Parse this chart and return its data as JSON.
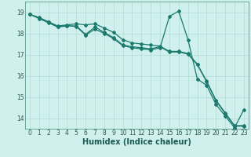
{
  "xlabel": "Humidex (Indice chaleur)",
  "bg_color": "#cff0ec",
  "grid_color": "#b0ddd8",
  "line_color": "#1a7a6e",
  "xlim": [
    -0.5,
    23.5
  ],
  "ylim": [
    13.5,
    19.5
  ],
  "yticks": [
    14,
    15,
    16,
    17,
    18,
    19
  ],
  "xticks": [
    0,
    1,
    2,
    3,
    4,
    5,
    6,
    7,
    8,
    9,
    10,
    11,
    12,
    13,
    14,
    15,
    16,
    17,
    18,
    19,
    20,
    21,
    22,
    23
  ],
  "line1_x": [
    0,
    1,
    2,
    3,
    4,
    5,
    6,
    7,
    8,
    9,
    10,
    11,
    12,
    13,
    14,
    15,
    16,
    17,
    18,
    19,
    20,
    21,
    22,
    23
  ],
  "line1_y": [
    18.9,
    18.75,
    18.55,
    18.35,
    18.4,
    18.45,
    18.4,
    18.45,
    18.25,
    18.05,
    17.7,
    17.55,
    17.5,
    17.45,
    17.4,
    17.15,
    17.15,
    17.05,
    16.55,
    15.75,
    14.85,
    14.25,
    13.65,
    13.65
  ],
  "line2_x": [
    0,
    1,
    2,
    3,
    4,
    5,
    6,
    7,
    8,
    9,
    10,
    11,
    12,
    13,
    14,
    15,
    16,
    17,
    18,
    19,
    20,
    21,
    22,
    23
  ],
  "line2_y": [
    18.9,
    18.72,
    18.52,
    18.32,
    18.37,
    18.32,
    17.92,
    18.2,
    18.0,
    17.75,
    17.42,
    17.32,
    17.27,
    17.22,
    17.32,
    18.8,
    19.05,
    17.7,
    15.85,
    15.55,
    14.65,
    14.1,
    13.55,
    14.4
  ],
  "line3_x": [
    0,
    1,
    2,
    3,
    4,
    5,
    6,
    7,
    8,
    9,
    10,
    11,
    12,
    13,
    14,
    15,
    16,
    17,
    18,
    19,
    20,
    21,
    22,
    23
  ],
  "line3_y": [
    18.9,
    18.7,
    18.5,
    18.3,
    18.35,
    18.35,
    17.95,
    18.3,
    18.05,
    17.8,
    17.45,
    17.37,
    17.32,
    17.27,
    17.37,
    17.12,
    17.12,
    17.02,
    16.52,
    15.72,
    14.82,
    14.22,
    13.62,
    13.62
  ],
  "marker": "D",
  "markersize": 2.0,
  "linewidth": 0.9,
  "tick_fontsize": 5.5,
  "xlabel_fontsize": 7.0
}
